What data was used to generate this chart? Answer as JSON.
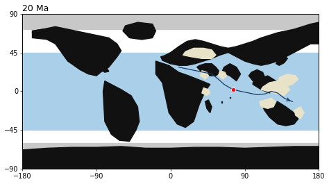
{
  "title": "20 Ma",
  "xlim": [
    -180,
    180
  ],
  "ylim": [
    -90,
    90
  ],
  "xticks": [
    -180,
    -90,
    0,
    90,
    180
  ],
  "yticks": [
    -90,
    -45,
    0,
    45,
    90
  ],
  "ocean_bg_color": "#ffffff",
  "ocean_band_color": "#aacfe8",
  "ocean_band_lat": [
    -45,
    45
  ],
  "land_color": "#111111",
  "shallow_color": "#e8e2c8",
  "polar_gray_color": "#c8c8c8",
  "arrow_color": "#1a3a6a",
  "red_dot_x": 76,
  "red_dot_y": 2,
  "red_dot_color": "#ee1111",
  "title_fontsize": 9,
  "tick_fontsize": 7
}
